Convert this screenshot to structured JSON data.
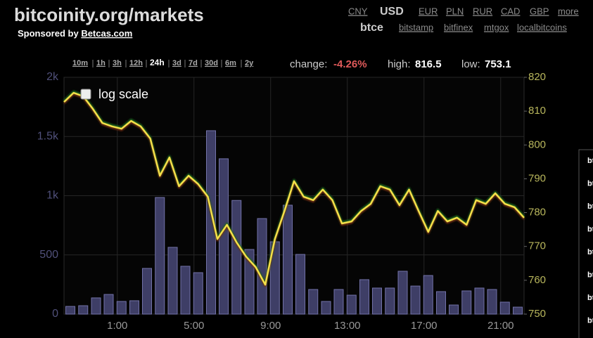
{
  "header": {
    "title": "bitcoinity.org/markets",
    "sponsor_prefix": "Sponsored by",
    "sponsor_link": "Betcas.com"
  },
  "currencies": [
    "CNY",
    "USD",
    "EUR",
    "PLN",
    "RUR",
    "CAD",
    "GBP",
    "more"
  ],
  "selected_currency": "USD",
  "exchanges": [
    "btce",
    "bitstamp",
    "bitfinex",
    "mtgox",
    "localbitcoins"
  ],
  "selected_exchange": "btce",
  "ranges": [
    "10m",
    "1h",
    "3h",
    "12h",
    "24h",
    "3d",
    "7d",
    "30d",
    "6m",
    "2y"
  ],
  "selected_range": "24h",
  "stats": {
    "change_label": "change:",
    "change": "-4.26%",
    "high_label": "high:",
    "high": "816.5",
    "low_label": "low:",
    "low": "753.1"
  },
  "log_scale_label": "log scale",
  "side_list": [
    "bt",
    "bt",
    "bt",
    "bt",
    "bt",
    "bt",
    "bt",
    "bt"
  ],
  "chart_data": {
    "type": "bar-line",
    "xlim": [
      0,
      24
    ],
    "xticks": [
      {
        "value": 2.78,
        "label": "1:00"
      },
      {
        "value": 6.78,
        "label": "5:00"
      },
      {
        "value": 10.78,
        "label": "9:00"
      },
      {
        "value": 14.78,
        "label": "13:00"
      },
      {
        "value": 18.78,
        "label": "17:00"
      },
      {
        "value": 22.78,
        "label": "21:00"
      }
    ],
    "ylim": [
      0,
      2000
    ],
    "yticks": [
      0,
      500,
      {
        "value": 1000,
        "label": "1k"
      },
      {
        "value": 1500,
        "label": "1.5k"
      },
      {
        "value": 2000,
        "label": "2k"
      }
    ],
    "y2lim": [
      750,
      820
    ],
    "y2ticks": [
      750,
      760,
      770,
      780,
      790,
      800,
      810,
      820
    ],
    "grid": true,
    "series": [
      {
        "color": "#3e3e66",
        "x": [
          0.33,
          1.0,
          1.67,
          2.33,
          3.0,
          3.67,
          4.33,
          5.0,
          5.67,
          6.33,
          7.0,
          7.67,
          8.33,
          9.0,
          9.67,
          10.33,
          11.0,
          11.67,
          12.33,
          13.0,
          13.67,
          14.33,
          15.0,
          15.67,
          16.33,
          17.0,
          17.67,
          18.33,
          19.0,
          19.67,
          20.33,
          21.0,
          21.67,
          22.33,
          23.0,
          23.67
        ],
        "values": [
          65,
          71,
          137,
          166,
          107,
          113,
          386,
          985,
          564,
          404,
          350,
          1549,
          1312,
          960,
          546,
          807,
          611,
          920,
          504,
          208,
          107,
          208,
          160,
          291,
          220,
          220,
          362,
          237,
          326,
          190,
          77,
          196,
          220,
          208,
          101,
          59
        ]
      },
      {
        "color": "#f3e04a",
        "axis": "y2",
        "x": [
          0,
          0.5,
          1,
          1.5,
          2,
          2.5,
          3,
          3.5,
          4,
          4.5,
          5,
          5.5,
          6,
          6.5,
          7,
          7.5,
          8,
          8.5,
          9,
          9.5,
          10,
          10.5,
          11,
          11.5,
          12,
          12.5,
          13,
          13.5,
          14,
          14.5,
          15,
          15.5,
          16,
          16.5,
          17,
          17.5,
          18,
          18.5,
          19,
          19.5,
          20,
          20.5,
          21,
          21.5,
          22,
          22.5,
          23,
          23.5,
          24
        ],
        "values": [
          812.7,
          815.4,
          814.4,
          810.7,
          806.5,
          805.5,
          804.8,
          807.1,
          805.5,
          801.9,
          790.9,
          796.3,
          787.8,
          790.9,
          788.4,
          784.7,
          772.2,
          776.4,
          771.2,
          767.0,
          763.9,
          758.7,
          772.2,
          780.5,
          789.3,
          784.7,
          783.7,
          786.8,
          783.7,
          776.8,
          777.4,
          780.5,
          782.6,
          787.8,
          786.8,
          782.2,
          786.8,
          780.5,
          774.3,
          780.5,
          777.4,
          778.5,
          776.4,
          783.7,
          782.6,
          785.7,
          782.6,
          781.6,
          778.5
        ]
      }
    ]
  }
}
